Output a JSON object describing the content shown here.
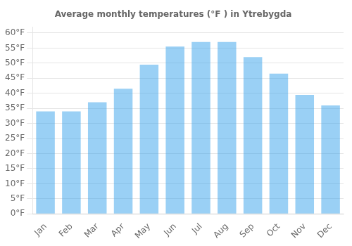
{
  "chart_data": {
    "type": "bar",
    "title": "Average monthly temperatures (°F ) in Ytrebygda",
    "categories": [
      "Jan",
      "Feb",
      "Mar",
      "Apr",
      "May",
      "Jun",
      "Jul",
      "Aug",
      "Sep",
      "Oct",
      "Nov",
      "Dec"
    ],
    "values": [
      34.0,
      34.0,
      37.0,
      41.5,
      49.5,
      55.5,
      57.0,
      57.0,
      52.0,
      46.5,
      39.5,
      36.0
    ],
    "ylim": [
      0,
      62
    ],
    "yticks": [
      {
        "value": 0,
        "label": "0°F"
      },
      {
        "value": 5,
        "label": "5°F"
      },
      {
        "value": 10,
        "label": "10°F"
      },
      {
        "value": 15,
        "label": "15°F"
      },
      {
        "value": 20,
        "label": "20°F"
      },
      {
        "value": 25,
        "label": "25°F"
      },
      {
        "value": 30,
        "label": "30°F"
      },
      {
        "value": 35,
        "label": "35°F"
      },
      {
        "value": 40,
        "label": "40°F"
      },
      {
        "value": 45,
        "label": "45°F"
      },
      {
        "value": 50,
        "label": "50°F"
      },
      {
        "value": 55,
        "label": "55°F"
      },
      {
        "value": 60,
        "label": "60°F"
      }
    ],
    "grid": true
  }
}
